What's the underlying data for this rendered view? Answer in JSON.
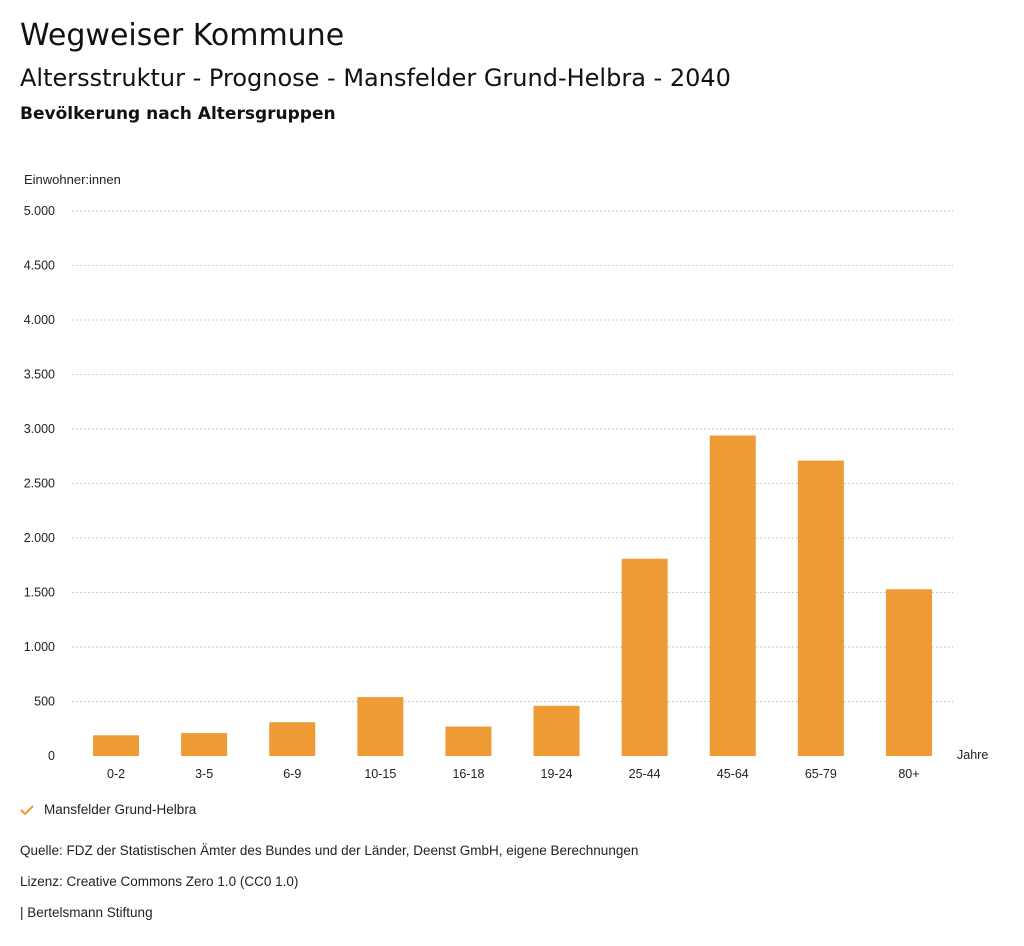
{
  "header": {
    "title": "Wegweiser Kommune",
    "subtitle": "Altersstruktur - Prognose - Mansfelder Grund-Helbra - 2040",
    "section": "Bevölkerung nach Altersgruppen"
  },
  "legend": {
    "label": "Mansfelder Grund-Helbra",
    "icon": "check-icon"
  },
  "footer": {
    "source": "Quelle: FDZ der Statistischen Ämter des Bundes und der Länder, Deenst GmbH, eigene Berechnungen",
    "license": "Lizenz: Creative Commons Zero 1.0 (CC0 1.0)",
    "org": "| Bertelsmann Stiftung"
  },
  "colors": {
    "bar": "#ee9a35",
    "grid": "#bbbbbb"
  },
  "chart_data": {
    "type": "bar",
    "ylabel": "Einwohner:innen",
    "xlabel": "Jahre",
    "categories": [
      "0-2",
      "3-5",
      "6-9",
      "10-15",
      "16-18",
      "19-24",
      "25-44",
      "45-64",
      "65-79",
      "80+"
    ],
    "series": [
      {
        "name": "Mansfelder Grund-Helbra",
        "values": [
          190,
          210,
          310,
          540,
          270,
          460,
          1810,
          2940,
          2710,
          1530
        ]
      }
    ],
    "ylim": [
      0,
      5000
    ],
    "yticks": [
      0,
      500,
      1000,
      1500,
      2000,
      2500,
      3000,
      3500,
      4000,
      4500,
      5000
    ],
    "ytick_labels": [
      "0",
      "500",
      "1.000",
      "1.500",
      "2.000",
      "2.500",
      "3.000",
      "3.500",
      "4.000",
      "4.500",
      "5.000"
    ],
    "grid": "horizontal dotted"
  }
}
